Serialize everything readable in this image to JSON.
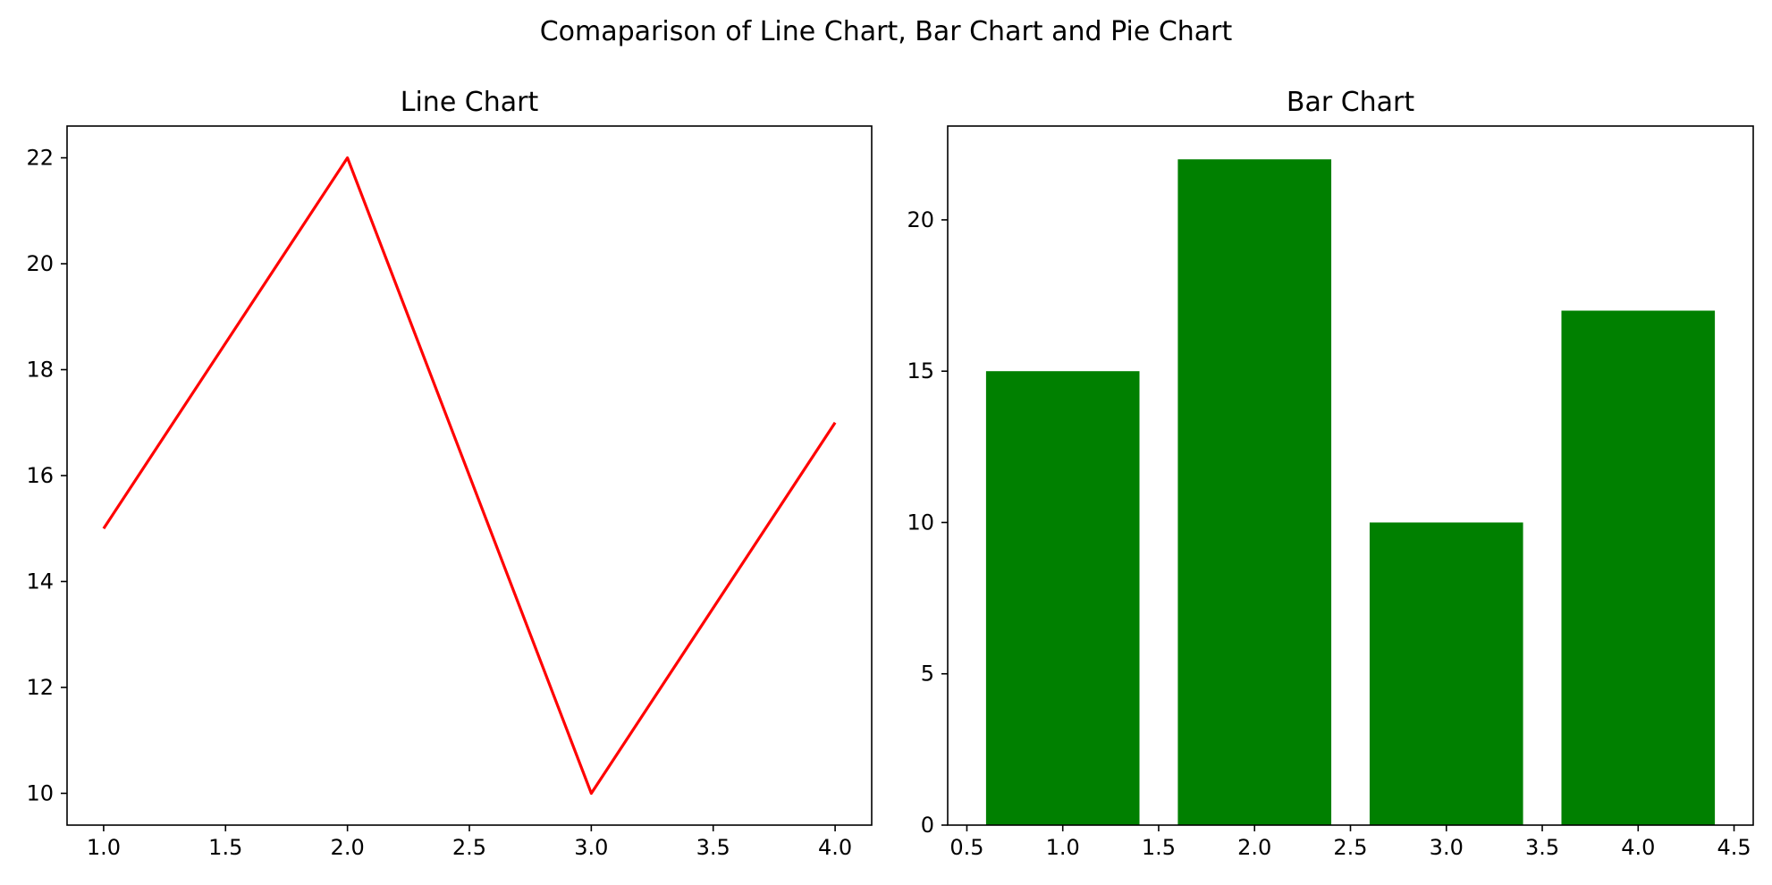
{
  "figure": {
    "suptitle": "Comaparison of Line Chart, Bar Chart and Pie Chart"
  },
  "chart_data": [
    {
      "type": "line",
      "title": "Line Chart",
      "x": [
        1,
        2,
        3,
        4
      ],
      "y": [
        15,
        22,
        10,
        17
      ],
      "color": "#ff0000",
      "xlim": [
        0.85,
        4.15
      ],
      "ylim": [
        9.4,
        22.6
      ],
      "xticks": [
        1.0,
        1.5,
        2.0,
        2.5,
        3.0,
        3.5,
        4.0
      ],
      "xtick_labels": [
        "1.0",
        "1.5",
        "2.0",
        "2.5",
        "3.0",
        "3.5",
        "4.0"
      ],
      "yticks": [
        10,
        12,
        14,
        16,
        18,
        20,
        22
      ],
      "ytick_labels": [
        "10",
        "12",
        "14",
        "16",
        "18",
        "20",
        "22"
      ],
      "grid": false
    },
    {
      "type": "bar",
      "title": "Bar Chart",
      "x": [
        1,
        2,
        3,
        4
      ],
      "values": [
        15,
        22,
        10,
        17
      ],
      "bar_width": 0.8,
      "color": "#008000",
      "xlim": [
        0.4,
        4.6
      ],
      "ylim": [
        0,
        23.1
      ],
      "xticks": [
        0.5,
        1.0,
        1.5,
        2.0,
        2.5,
        3.0,
        3.5,
        4.0,
        4.5
      ],
      "xtick_labels": [
        "0.5",
        "1.0",
        "1.5",
        "2.0",
        "2.5",
        "3.0",
        "3.5",
        "4.0",
        "4.5"
      ],
      "yticks": [
        0,
        5,
        10,
        15,
        20
      ],
      "ytick_labels": [
        "0",
        "5",
        "10",
        "15",
        "20"
      ],
      "grid": false
    }
  ]
}
